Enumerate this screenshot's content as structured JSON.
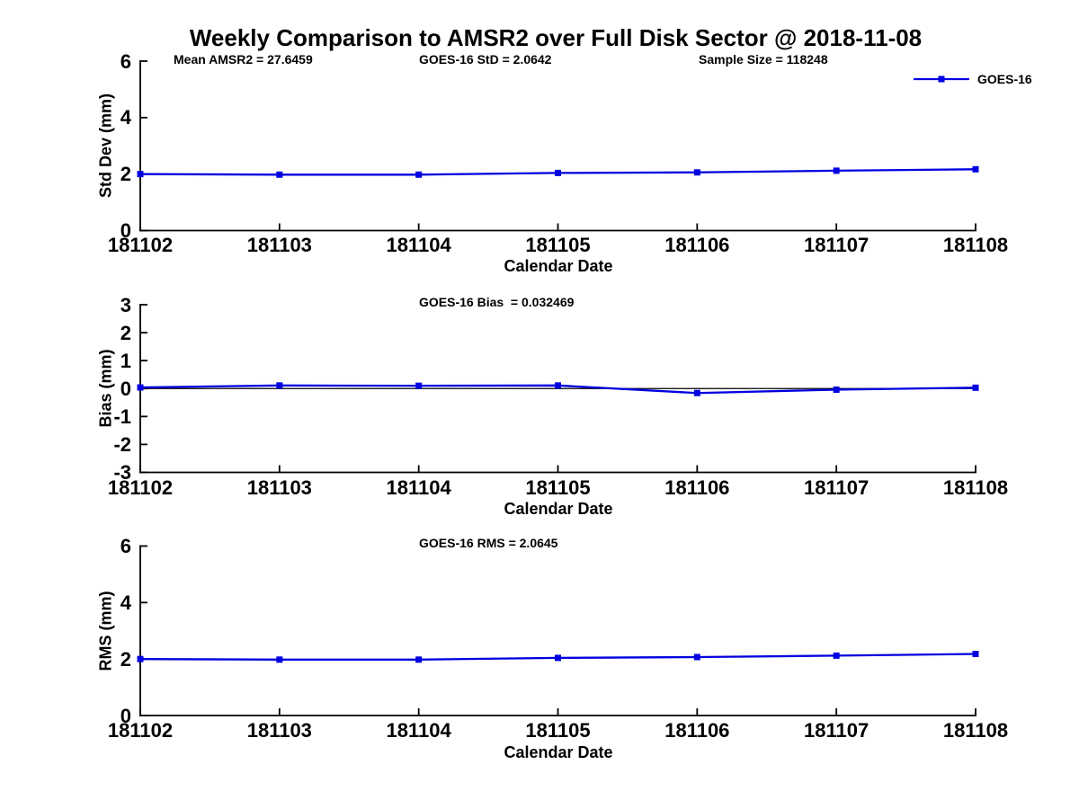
{
  "title": "Weekly Comparison to AMSR2 over Full Disk Sector @ 2018-11-08",
  "legend": {
    "label": "GOES-16"
  },
  "colors": {
    "series": "#0000e0",
    "axis": "#000000",
    "zero_line": "#000000"
  },
  "chart_data": [
    {
      "type": "line",
      "x_categories": [
        "181102",
        "181103",
        "181104",
        "181105",
        "181106",
        "181107",
        "181108"
      ],
      "series": [
        {
          "name": "GOES-16",
          "marker": "square",
          "color": "#0000e0",
          "values": [
            2.0,
            1.98,
            1.98,
            2.04,
            2.06,
            2.12,
            2.17
          ]
        }
      ],
      "xlabel": "Calendar Date",
      "ylabel": "Std Dev (mm)",
      "ylim": [
        0,
        6
      ],
      "yticks": [
        0,
        2,
        4,
        6
      ],
      "grid": false,
      "zero_line": false,
      "legend_position": "top-right-outside",
      "annotations": [
        "Mean AMSR2 = 27.6459",
        "GOES-16 StD = 2.0642",
        "Sample Size = 118248"
      ]
    },
    {
      "type": "line",
      "x_categories": [
        "181102",
        "181103",
        "181104",
        "181105",
        "181106",
        "181107",
        "181108"
      ],
      "series": [
        {
          "name": "GOES-16",
          "marker": "square",
          "color": "#0000e0",
          "values": [
            0.04,
            0.11,
            0.1,
            0.11,
            -0.16,
            -0.04,
            0.03
          ]
        }
      ],
      "xlabel": "Calendar Date",
      "ylabel": "Bias (mm)",
      "ylim": [
        -3,
        3
      ],
      "yticks": [
        -3,
        -2,
        -1,
        0,
        1,
        2,
        3
      ],
      "grid": false,
      "zero_line": true,
      "annotations": [
        "GOES-16 Bias  = 0.032469"
      ]
    },
    {
      "type": "line",
      "x_categories": [
        "181102",
        "181103",
        "181104",
        "181105",
        "181106",
        "181107",
        "181108"
      ],
      "series": [
        {
          "name": "GOES-16",
          "marker": "square",
          "color": "#0000e0",
          "values": [
            2.0,
            1.98,
            1.98,
            2.04,
            2.07,
            2.12,
            2.18
          ]
        }
      ],
      "xlabel": "Calendar Date",
      "ylabel": "RMS (mm)",
      "ylim": [
        0,
        6
      ],
      "yticks": [
        0,
        2,
        4,
        6
      ],
      "grid": false,
      "zero_line": false,
      "annotations": [
        "GOES-16 RMS = 2.0645"
      ]
    }
  ]
}
